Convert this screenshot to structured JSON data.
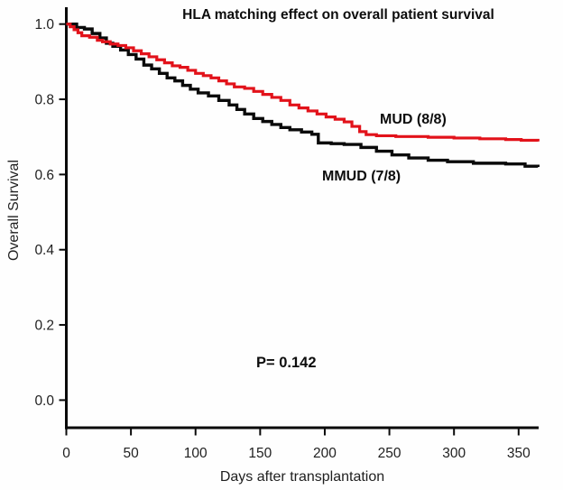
{
  "figure": {
    "background_color": "#fefefe",
    "axis_color": "#0a0a0a",
    "tick_label_color": "#1f1f1f"
  },
  "chart_data": {
    "type": "line",
    "subtype": "kaplan-meier-step-curve",
    "title": "HLA matching effect on overall patient survival",
    "xlabel": "Days after transplantation",
    "ylabel": "Overall Survival",
    "xlim": [
      0,
      365
    ],
    "ylim": [
      0.0,
      1.0
    ],
    "x_ticks": [
      0,
      50,
      100,
      150,
      200,
      250,
      300,
      350
    ],
    "y_ticks": [
      1.0,
      0.8,
      0.6,
      0.4,
      0.2,
      0.0
    ],
    "grid": false,
    "legend_position": "inline-annotations",
    "annotations": [
      {
        "text": "P= 0.142",
        "x_day": 180,
        "y_survival": 0.09
      }
    ],
    "series": [
      {
        "name": "MUD (8/8)",
        "color": "#e2121a",
        "stroke_width": 3.2,
        "points": [
          [
            0,
            1.0
          ],
          [
            3,
            0.993
          ],
          [
            6,
            0.985
          ],
          [
            9,
            0.977
          ],
          [
            12,
            0.969
          ],
          [
            18,
            0.965
          ],
          [
            24,
            0.957
          ],
          [
            28,
            0.953
          ],
          [
            34,
            0.947
          ],
          [
            40,
            0.943
          ],
          [
            46,
            0.937
          ],
          [
            52,
            0.929
          ],
          [
            58,
            0.921
          ],
          [
            64,
            0.913
          ],
          [
            70,
            0.905
          ],
          [
            76,
            0.897
          ],
          [
            82,
            0.889
          ],
          [
            88,
            0.885
          ],
          [
            94,
            0.877
          ],
          [
            100,
            0.869
          ],
          [
            106,
            0.863
          ],
          [
            112,
            0.857
          ],
          [
            118,
            0.849
          ],
          [
            124,
            0.841
          ],
          [
            130,
            0.833
          ],
          [
            138,
            0.829
          ],
          [
            145,
            0.821
          ],
          [
            152,
            0.813
          ],
          [
            159,
            0.805
          ],
          [
            166,
            0.797
          ],
          [
            173,
            0.785
          ],
          [
            180,
            0.777
          ],
          [
            187,
            0.769
          ],
          [
            194,
            0.761
          ],
          [
            201,
            0.753
          ],
          [
            208,
            0.747
          ],
          [
            215,
            0.74
          ],
          [
            221,
            0.728
          ],
          [
            227,
            0.714
          ],
          [
            232,
            0.706
          ],
          [
            240,
            0.703
          ],
          [
            255,
            0.701
          ],
          [
            280,
            0.699
          ],
          [
            300,
            0.697
          ],
          [
            320,
            0.695
          ],
          [
            340,
            0.693
          ],
          [
            352,
            0.691
          ],
          [
            365,
            0.688
          ]
        ]
      },
      {
        "name": "MMUD (7/8)",
        "color": "#0a0a0a",
        "stroke_width": 3.4,
        "points": [
          [
            0,
            1.0
          ],
          [
            8,
            0.991
          ],
          [
            14,
            0.987
          ],
          [
            20,
            0.975
          ],
          [
            26,
            0.963
          ],
          [
            31,
            0.949
          ],
          [
            36,
            0.941
          ],
          [
            42,
            0.931
          ],
          [
            48,
            0.919
          ],
          [
            54,
            0.907
          ],
          [
            60,
            0.891
          ],
          [
            66,
            0.881
          ],
          [
            72,
            0.869
          ],
          [
            78,
            0.857
          ],
          [
            84,
            0.849
          ],
          [
            90,
            0.837
          ],
          [
            96,
            0.827
          ],
          [
            102,
            0.817
          ],
          [
            110,
            0.809
          ],
          [
            118,
            0.797
          ],
          [
            126,
            0.785
          ],
          [
            132,
            0.773
          ],
          [
            138,
            0.761
          ],
          [
            145,
            0.749
          ],
          [
            152,
            0.741
          ],
          [
            159,
            0.733
          ],
          [
            166,
            0.725
          ],
          [
            173,
            0.719
          ],
          [
            182,
            0.713
          ],
          [
            190,
            0.707
          ],
          [
            195,
            0.684
          ],
          [
            205,
            0.682
          ],
          [
            215,
            0.68
          ],
          [
            228,
            0.672
          ],
          [
            240,
            0.662
          ],
          [
            252,
            0.652
          ],
          [
            265,
            0.644
          ],
          [
            280,
            0.638
          ],
          [
            295,
            0.634
          ],
          [
            315,
            0.63
          ],
          [
            340,
            0.628
          ],
          [
            355,
            0.622
          ],
          [
            365,
            0.62
          ]
        ]
      }
    ]
  }
}
